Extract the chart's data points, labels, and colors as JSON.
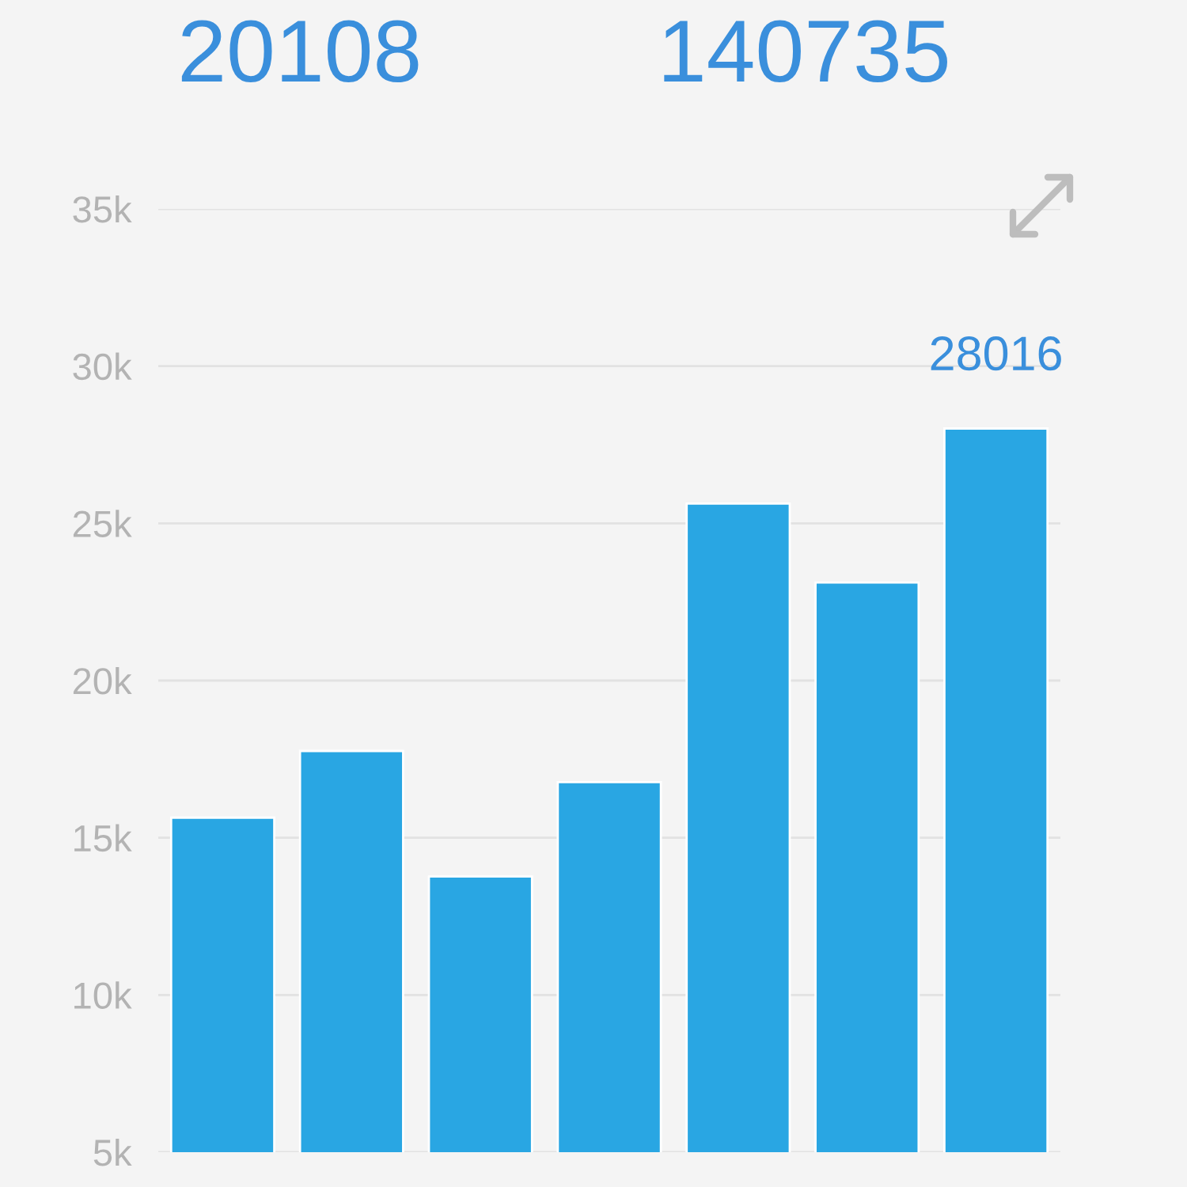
{
  "chart_data": {
    "type": "bar",
    "annotations": [
      "20108",
      "140735"
    ],
    "categories": [
      null,
      null,
      null,
      null,
      null,
      null,
      null
    ],
    "values": [
      15640,
      17760,
      13770,
      16770,
      25630,
      23120,
      28016
    ],
    "value_labels": [
      null,
      null,
      null,
      null,
      null,
      null,
      "28016"
    ],
    "color": "#29a6e3",
    "ylim": [
      5000,
      35000
    ],
    "yticks": [
      {
        "value": 5000,
        "label": "5k"
      },
      {
        "value": 10000,
        "label": "10k"
      },
      {
        "value": 15000,
        "label": "15k"
      },
      {
        "value": 20000,
        "label": "20k"
      },
      {
        "value": 25000,
        "label": "25k"
      },
      {
        "value": 30000,
        "label": "30k"
      },
      {
        "value": 35000,
        "label": "35k"
      }
    ],
    "grid": "y",
    "tick_labels": "y"
  }
}
